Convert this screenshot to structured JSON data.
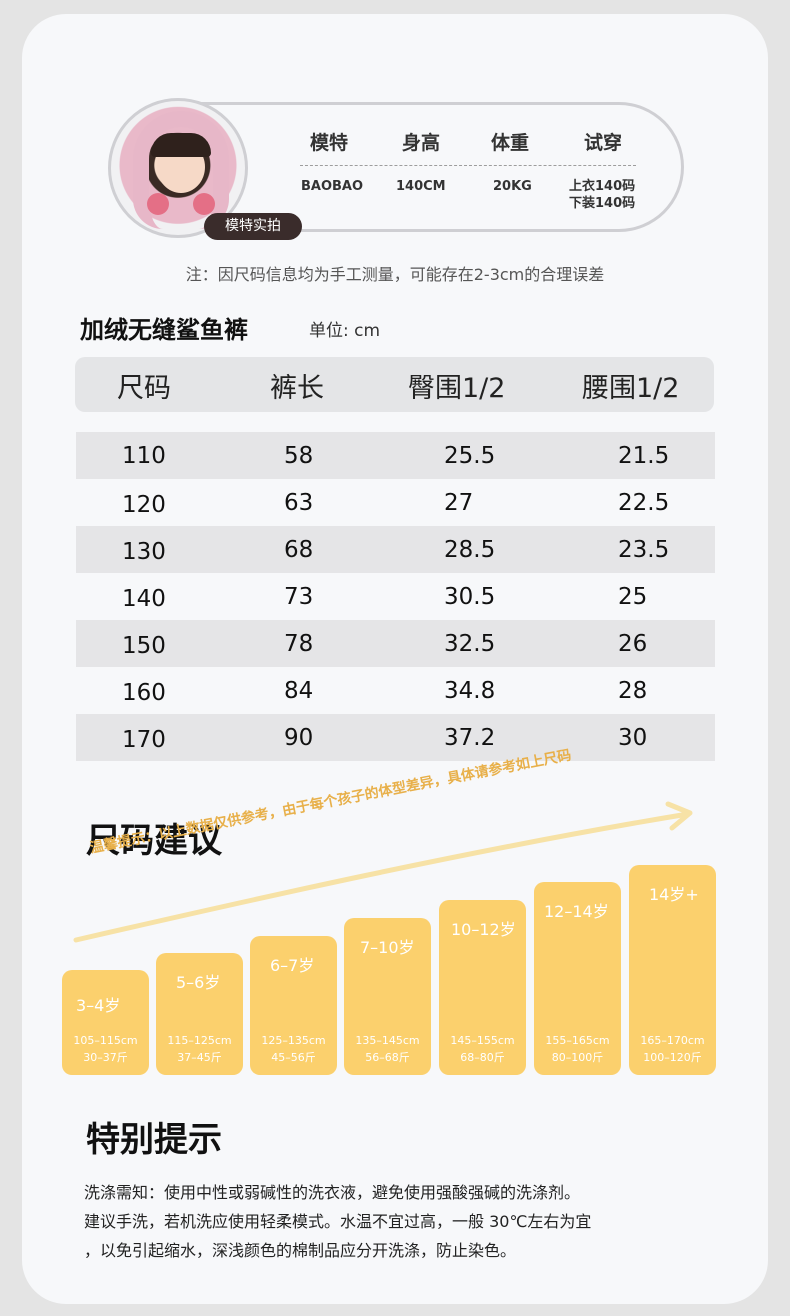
{
  "model": {
    "badge": "模特实拍",
    "headers": [
      "模特",
      "身高",
      "体重",
      "试穿"
    ],
    "name": "BAOBAO",
    "height": "140CM",
    "weight": "20KG",
    "tryon_top": "上衣140码",
    "tryon_bottom": "下装140码"
  },
  "note": "注：因尺码信息均为手工测量，可能存在2-3cm的合理误差",
  "product": {
    "title": "加绒无缝鲨鱼裤",
    "unit": "单位: cm"
  },
  "size_table": {
    "headers": [
      "尺码",
      "裤长",
      "臀围1/2",
      "腰围1/2"
    ],
    "rows": [
      [
        "110",
        "58",
        "25.5",
        "21.5"
      ],
      [
        "120",
        "63",
        "27",
        "22.5"
      ],
      [
        "130",
        "68",
        "28.5",
        "23.5"
      ],
      [
        "140",
        "73",
        "30.5",
        "25"
      ],
      [
        "150",
        "78",
        "32.5",
        "26"
      ],
      [
        "160",
        "84",
        "34.8",
        "28"
      ],
      [
        "170",
        "90",
        "37.2",
        "30"
      ]
    ]
  },
  "suggestion": {
    "title": "尺码建议",
    "tip": "温馨提示：以上数据仅供参考，由于每个孩子的体型差异，具体请参考如上尺码",
    "bars": [
      {
        "age": "3–4岁",
        "height": "105–115cm",
        "weight": "30–37斤"
      },
      {
        "age": "5–6岁",
        "height": "115–125cm",
        "weight": "37–45斤"
      },
      {
        "age": "6–7岁",
        "height": "125–135cm",
        "weight": "45–56斤"
      },
      {
        "age": "7–10岁",
        "height": "135–145cm",
        "weight": "56–68斤"
      },
      {
        "age": "10–12岁",
        "height": "145–155cm",
        "weight": "68–80斤"
      },
      {
        "age": "12–14岁",
        "height": "155–165cm",
        "weight": "80–100斤"
      },
      {
        "age": "14岁+",
        "height": "165–170cm",
        "weight": "100–120斤"
      }
    ]
  },
  "special": {
    "title": "特别提示",
    "lines": [
      "洗涤需知：使用中性或弱碱性的洗衣液，避免使用强酸强碱的洗涤剂。",
      "建议手洗，若机洗应使用轻柔模式。水温不宜过高，一般 30℃左右为宜",
      "，以免引起缩水，深浅颜色的棉制品应分开洗涤，防止染色。"
    ]
  },
  "colors": {
    "card": "#f7f8fa",
    "bar": "#fbd06d",
    "tip": "#e8b04a",
    "shade": "#e5e5e7"
  }
}
